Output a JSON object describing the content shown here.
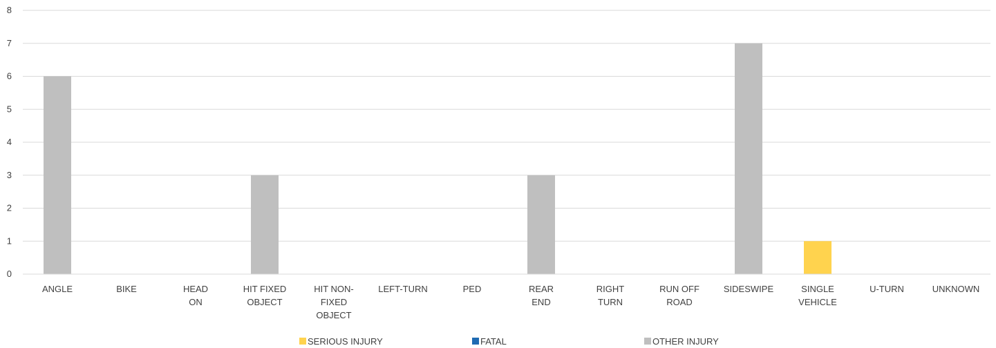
{
  "chart_data": {
    "type": "bar",
    "stacked": true,
    "categories": [
      [
        "ANGLE"
      ],
      [
        "BIKE"
      ],
      [
        "HEAD",
        "ON"
      ],
      [
        "HIT FIXED",
        "OBJECT"
      ],
      [
        "HIT NON-",
        "FIXED",
        "OBJECT"
      ],
      [
        "LEFT-TURN"
      ],
      [
        "PED"
      ],
      [
        "REAR",
        "END"
      ],
      [
        "RIGHT",
        "TURN"
      ],
      [
        "RUN OFF",
        "ROAD"
      ],
      [
        "SIDESWIPE"
      ],
      [
        "SINGLE",
        "VEHICLE"
      ],
      [
        "U-TURN"
      ],
      [
        "UNKNOWN"
      ]
    ],
    "series": [
      {
        "name": "SERIOUS INJURY",
        "color": "#FFD34E",
        "values": [
          0,
          0,
          0,
          0,
          0,
          0,
          0,
          0,
          0,
          0,
          0,
          1,
          0,
          0
        ]
      },
      {
        "name": "FATAL",
        "color": "#1F6BB3",
        "values": [
          0,
          0,
          0,
          0,
          0,
          0,
          0,
          0,
          0,
          0,
          0,
          0,
          0,
          0
        ]
      },
      {
        "name": "OTHER INJURY",
        "color": "#BFBFBF",
        "values": [
          6,
          0,
          0,
          3,
          0,
          0,
          0,
          3,
          0,
          0,
          7,
          0,
          0,
          0
        ]
      }
    ],
    "ylim": [
      0,
      8
    ],
    "yticks": [
      0,
      1,
      2,
      3,
      4,
      5,
      6,
      7,
      8
    ],
    "grid": true,
    "legend": "bottom"
  }
}
